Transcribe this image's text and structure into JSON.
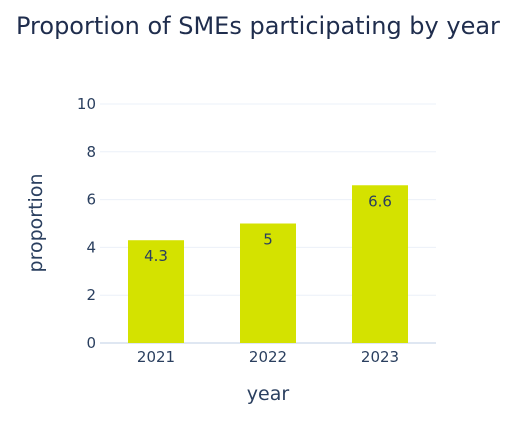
{
  "chart_data": {
    "type": "bar",
    "title": "Proportion of SMEs participating by year",
    "xlabel": "year",
    "ylabel": "proportion",
    "categories": [
      "2021",
      "2022",
      "2023"
    ],
    "values": [
      4.3,
      5,
      6.6
    ],
    "value_labels": [
      "4.3",
      "5",
      "6.6"
    ],
    "ylim": [
      0,
      10
    ],
    "yticks": [
      "0",
      "2",
      "4",
      "6",
      "8",
      "10"
    ],
    "ytick_values": [
      0,
      2,
      4,
      6,
      8,
      10
    ],
    "grid": true,
    "bar_color": "#d4e200"
  }
}
